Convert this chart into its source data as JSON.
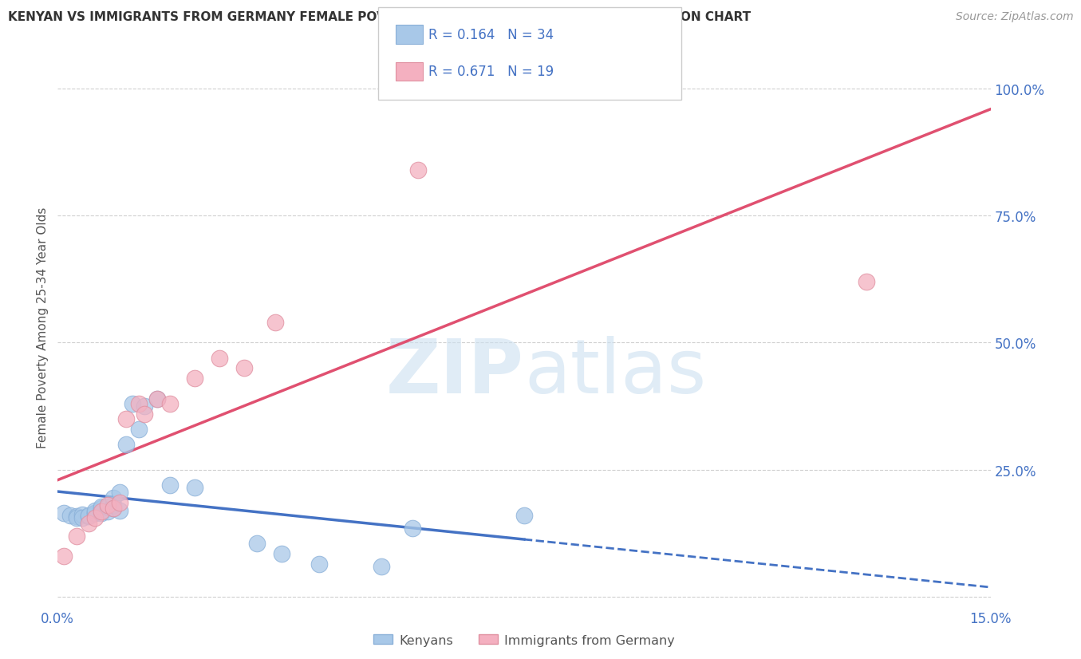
{
  "title": "KENYAN VS IMMIGRANTS FROM GERMANY FEMALE POVERTY AMONG 25-34 YEAR OLDS CORRELATION CHART",
  "source": "Source: ZipAtlas.com",
  "ylabel": "Female Poverty Among 25-34 Year Olds",
  "xlim": [
    0.0,
    0.15
  ],
  "ylim": [
    -0.02,
    1.08
  ],
  "xticks": [
    0.0,
    0.03,
    0.06,
    0.09,
    0.12,
    0.15
  ],
  "xticklabels": [
    "0.0%",
    "",
    "",
    "",
    "",
    "15.0%"
  ],
  "yticks_right": [
    0.0,
    0.25,
    0.5,
    0.75,
    1.0
  ],
  "yticklabels_right": [
    "",
    "25.0%",
    "50.0%",
    "75.0%",
    "100.0%"
  ],
  "kenyan_R": 0.164,
  "kenyan_N": 34,
  "germany_R": 0.671,
  "germany_N": 19,
  "kenyan_color": "#a8c8e8",
  "germany_color": "#f4b0c0",
  "kenyan_line_color": "#4472c4",
  "germany_line_color": "#e05070",
  "axis_label_color": "#4472c4",
  "title_color": "#333333",
  "watermark_color": "#cce0f0",
  "kenyan_x": [
    0.001,
    0.002,
    0.003,
    0.003,
    0.004,
    0.004,
    0.005,
    0.005,
    0.006,
    0.006,
    0.006,
    0.007,
    0.007,
    0.007,
    0.008,
    0.008,
    0.009,
    0.009,
    0.009,
    0.01,
    0.01,
    0.011,
    0.012,
    0.013,
    0.014,
    0.016,
    0.018,
    0.022,
    0.032,
    0.036,
    0.042,
    0.052,
    0.057,
    0.075
  ],
  "kenyan_y": [
    0.165,
    0.16,
    0.158,
    0.155,
    0.162,
    0.155,
    0.158,
    0.16,
    0.165,
    0.165,
    0.17,
    0.175,
    0.165,
    0.178,
    0.168,
    0.178,
    0.175,
    0.18,
    0.195,
    0.17,
    0.205,
    0.3,
    0.38,
    0.33,
    0.375,
    0.39,
    0.22,
    0.215,
    0.105,
    0.085,
    0.065,
    0.06,
    0.135,
    0.16
  ],
  "germany_x": [
    0.001,
    0.003,
    0.005,
    0.006,
    0.007,
    0.008,
    0.009,
    0.01,
    0.011,
    0.013,
    0.014,
    0.016,
    0.018,
    0.022,
    0.026,
    0.03,
    0.035,
    0.058,
    0.13
  ],
  "germany_y": [
    0.08,
    0.12,
    0.145,
    0.155,
    0.168,
    0.18,
    0.175,
    0.185,
    0.35,
    0.38,
    0.36,
    0.39,
    0.38,
    0.43,
    0.47,
    0.45,
    0.54,
    0.84,
    0.62
  ],
  "background_color": "#ffffff",
  "grid_color": "#d0d0d0"
}
